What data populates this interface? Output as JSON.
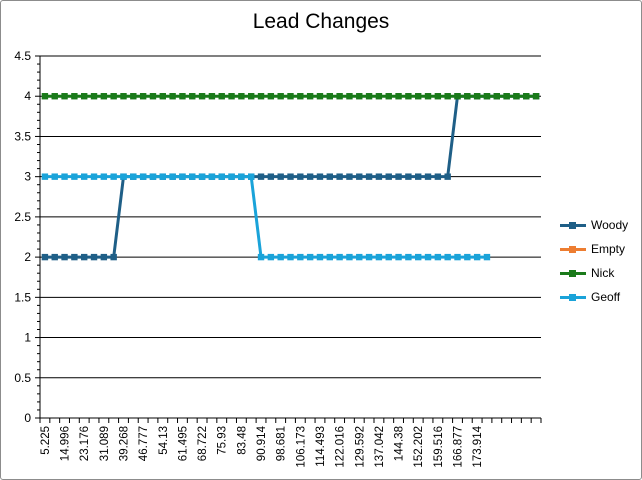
{
  "chart_data": {
    "type": "line",
    "title": "Lead Changes",
    "xlabel": "",
    "ylabel": "",
    "ylim": [
      0,
      4.5
    ],
    "yticks": [
      "0",
      "0.5",
      "1",
      "1.5",
      "2",
      "2.5",
      "3",
      "3.5",
      "4",
      "4.5"
    ],
    "x_tick_labels": [
      "5.225",
      "14.996",
      "23.176",
      "31.089",
      "39.268",
      "46.777",
      "54.13",
      "61.495",
      "68.722",
      "75.93",
      "83.48",
      "90.914",
      "98.681",
      "106.173",
      "114.493",
      "122.016",
      "129.592",
      "137.042",
      "144.38",
      "152.202",
      "159.516",
      "166.877",
      "173.914"
    ],
    "grid": true,
    "legend_position": "right",
    "series": [
      {
        "name": "Woody",
        "color": "#1f5f87",
        "values": [
          2,
          2,
          2,
          2,
          2,
          2,
          2,
          2,
          3,
          3,
          3,
          3,
          3,
          3,
          3,
          3,
          3,
          3,
          3,
          3,
          3,
          3,
          3,
          3,
          3,
          3,
          3,
          3,
          3,
          3,
          3,
          3,
          3,
          3,
          3,
          3,
          3,
          3,
          3,
          3,
          3,
          3,
          4,
          4,
          4,
          4,
          4,
          4,
          4,
          4,
          4
        ]
      },
      {
        "name": "Empty",
        "color": "#ed7d31",
        "values": []
      },
      {
        "name": "Nick",
        "color": "#1a7a1a",
        "values": [
          4,
          4,
          4,
          4,
          4,
          4,
          4,
          4,
          4,
          4,
          4,
          4,
          4,
          4,
          4,
          4,
          4,
          4,
          4,
          4,
          4,
          4,
          4,
          4,
          4,
          4,
          4,
          4,
          4,
          4,
          4,
          4,
          4,
          4,
          4,
          4,
          4,
          4,
          4,
          4,
          4,
          4,
          4,
          4,
          4,
          4,
          4,
          4,
          4,
          4,
          4
        ]
      },
      {
        "name": "Geoff",
        "color": "#1aa3d9",
        "values": [
          3,
          3,
          3,
          3,
          3,
          3,
          3,
          3,
          3,
          3,
          3,
          3,
          3,
          3,
          3,
          3,
          3,
          3,
          3,
          3,
          3,
          3,
          2,
          2,
          2,
          2,
          2,
          2,
          2,
          2,
          2,
          2,
          2,
          2,
          2,
          2,
          2,
          2,
          2,
          2,
          2,
          2,
          2,
          2,
          2,
          2
        ]
      }
    ]
  }
}
